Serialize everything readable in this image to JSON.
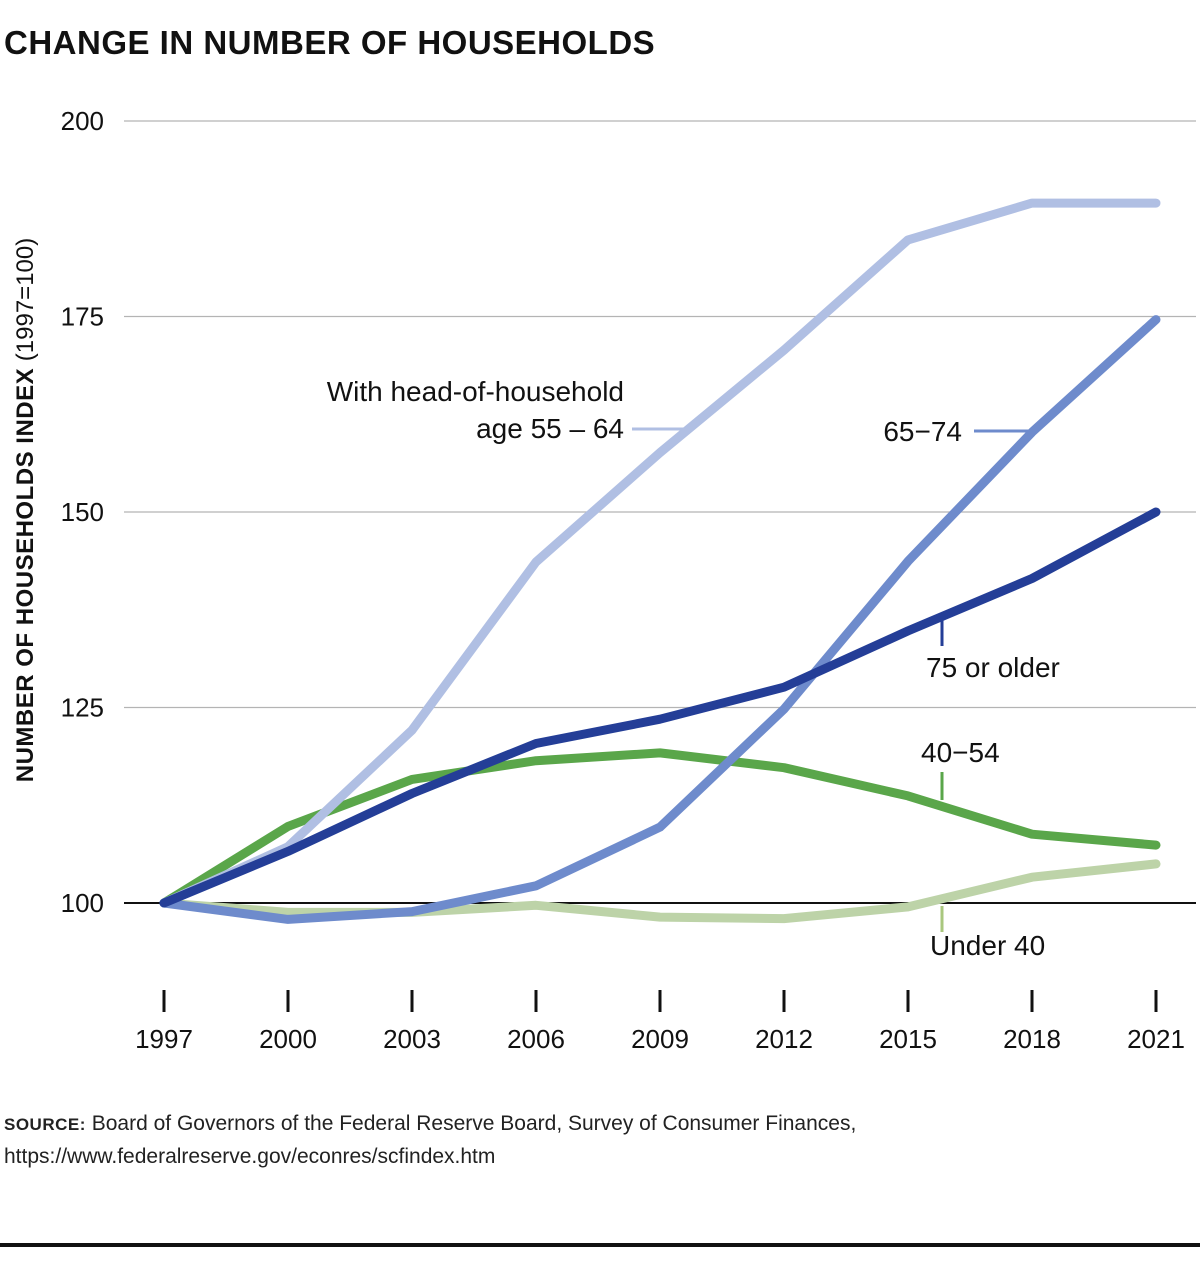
{
  "title": "CHANGE IN NUMBER OF HOUSEHOLDS",
  "ylabel_bold": "NUMBER OF HOUSEHOLDS INDEX",
  "ylabel_rest": "(1997=100)",
  "source_tag": "SOURCE:",
  "source_text": "Board of Governors of the Federal Reserve Board, Survey of Consumer Finances,",
  "source_url": "https://www.federalreserve.gov/econres/scfindex.htm",
  "chart_data": {
    "type": "line",
    "title": "CHANGE IN NUMBER OF HOUSEHOLDS",
    "xlabel": "",
    "ylabel": "NUMBER OF HOUSEHOLDS INDEX (1997=100)",
    "x": [
      "1997",
      "2000",
      "2003",
      "2006",
      "2009",
      "2012",
      "2015",
      "2018",
      "2021"
    ],
    "ylim": [
      100,
      200
    ],
    "yticks": [
      100,
      125,
      150,
      175,
      200
    ],
    "grid": true,
    "series": [
      {
        "name": "Under 40",
        "color": "#bdd3a8",
        "values": [
          100,
          98.8,
          98.8,
          99.7,
          98.2,
          98.0,
          99.5,
          103.3,
          105.0
        ]
      },
      {
        "name": "40–54",
        "color": "#5aa64a",
        "values": [
          100,
          109.8,
          115.8,
          118.2,
          119.2,
          117.3,
          113.7,
          108.8,
          107.4
        ]
      },
      {
        "name": "With head-of-household age 55 – 64",
        "color": "#b0bfe3",
        "values": [
          100,
          107.2,
          122.1,
          143.6,
          157.6,
          170.7,
          184.8,
          189.5,
          189.5
        ]
      },
      {
        "name": "65–74",
        "color": "#6e8bcc",
        "values": [
          100,
          97.9,
          98.9,
          102.2,
          109.7,
          124.8,
          143.7,
          160.2,
          174.6
        ]
      },
      {
        "name": "75 or older",
        "color": "#243e97",
        "values": [
          100,
          106.6,
          114.0,
          120.4,
          123.5,
          127.6,
          134.8,
          141.5,
          150.0
        ]
      }
    ],
    "labels": {
      "s55_line1": "With head-of-household",
      "s55_line2": "age 55 – 64",
      "s65": "65−74",
      "s75": "75 or older",
      "s40": "40−54",
      "sU40": "Under 40"
    }
  }
}
